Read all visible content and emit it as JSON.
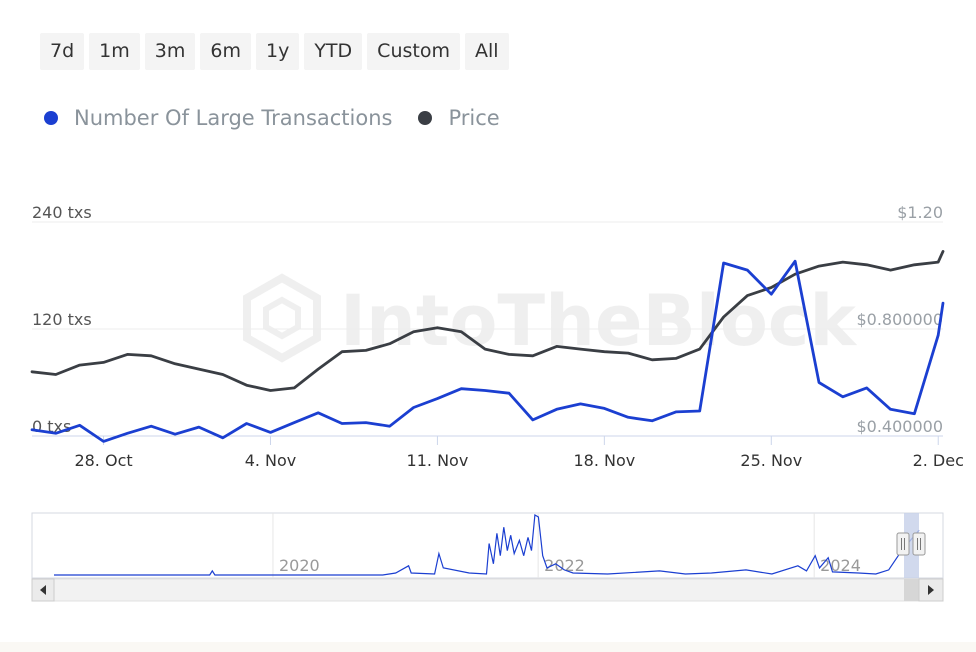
{
  "range_selector": {
    "buttons": [
      "7d",
      "1m",
      "3m",
      "6m",
      "1y",
      "YTD",
      "Custom",
      "All"
    ]
  },
  "legend": {
    "items": [
      {
        "label": "Number Of Large Transactions",
        "color": "#1b3fd1"
      },
      {
        "label": "Price",
        "color": "#3a3e44"
      }
    ]
  },
  "watermark": "IntoTheBlock",
  "chart_data": {
    "type": "line",
    "title": "",
    "x_tick_labels": [
      "28. Oct",
      "4. Nov",
      "11. Nov",
      "18. Nov",
      "25. Nov",
      "2. Dec"
    ],
    "x_tick_days": [
      0,
      7,
      14,
      21,
      28,
      35
    ],
    "x_range_days": [
      -3,
      35.2
    ],
    "left_axis": {
      "tick_labels": [
        "0 txs",
        "120 txs",
        "240 txs"
      ],
      "tick_values": [
        0,
        120,
        240
      ],
      "range": [
        0,
        240
      ]
    },
    "right_axis": {
      "tick_labels": [
        "$0.400000",
        "$0.800000",
        "$1.20"
      ],
      "tick_values": [
        0.4,
        0.8,
        1.2
      ],
      "range": [
        0.4,
        1.2
      ]
    },
    "grid": true,
    "legend_position": "top-left",
    "series": [
      {
        "name": "Number Of Large Transactions",
        "color": "#1b3fd1",
        "axis": "left",
        "x": [
          -3,
          -2,
          -1,
          0,
          1,
          2,
          3,
          4,
          5,
          6,
          7,
          8,
          9,
          10,
          11,
          12,
          13,
          14,
          15,
          16,
          17,
          18,
          19,
          20,
          21,
          22,
          23,
          24,
          25,
          26,
          27,
          28,
          29,
          30,
          31,
          32,
          33,
          34,
          35,
          35.2
        ],
        "values": [
          7,
          3,
          12,
          -6,
          3,
          11,
          2,
          10,
          -2,
          14,
          4,
          15,
          26,
          14,
          15,
          11,
          32,
          42,
          53,
          51,
          48,
          18,
          30,
          36,
          31,
          21,
          17,
          27,
          28,
          194,
          186,
          159,
          196,
          60,
          44,
          54,
          30,
          25,
          113,
          149
        ]
      },
      {
        "name": "Price",
        "color": "#3a3e44",
        "axis": "right",
        "x": [
          -3,
          -2,
          -1,
          0,
          1,
          2,
          3,
          4,
          5,
          6,
          7,
          8,
          9,
          10,
          11,
          12,
          13,
          14,
          15,
          16,
          17,
          18,
          19,
          20,
          21,
          22,
          23,
          24,
          25,
          26,
          27,
          28,
          29,
          30,
          31,
          32,
          33,
          34,
          35,
          35.2
        ],
        "values": [
          0.64,
          0.63,
          0.665,
          0.675,
          0.705,
          0.7,
          0.67,
          0.65,
          0.63,
          0.59,
          0.57,
          0.58,
          0.65,
          0.715,
          0.72,
          0.745,
          0.79,
          0.805,
          0.79,
          0.725,
          0.705,
          0.7,
          0.735,
          0.725,
          0.715,
          0.71,
          0.685,
          0.69,
          0.725,
          0.845,
          0.925,
          0.955,
          1.005,
          1.035,
          1.05,
          1.04,
          1.02,
          1.04,
          1.05,
          1.09
        ]
      }
    ]
  },
  "navigator": {
    "year_labels": [
      "2020",
      "2022",
      "2024"
    ],
    "year_positions": [
      0.2645,
      0.5556,
      0.8586
    ]
  }
}
